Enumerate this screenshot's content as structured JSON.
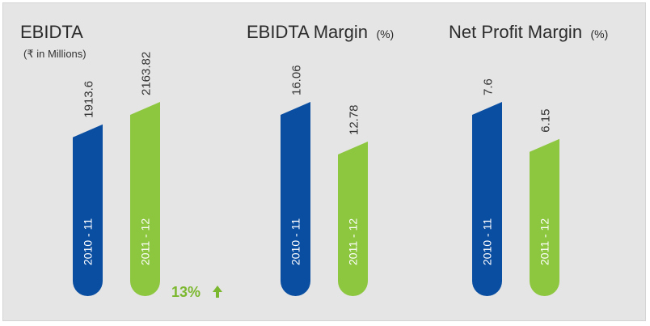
{
  "chart_data": [
    {
      "type": "bar",
      "title": "EBIDTA",
      "subtitle": "(₹ in Millions)",
      "categories": [
        "2010 - 11",
        "2011 - 12"
      ],
      "values": [
        1913.6,
        2163.82
      ],
      "value_labels": [
        "1913.6",
        "2163.82"
      ],
      "growth_label": "13%"
    },
    {
      "type": "bar",
      "title": "EBIDTA Margin",
      "title_unit": "(%)",
      "categories": [
        "2010 - 11",
        "2011 - 12"
      ],
      "values": [
        16.06,
        12.78
      ],
      "value_labels": [
        "16.06",
        "12.78"
      ]
    },
    {
      "type": "bar",
      "title": "Net Profit Margin",
      "title_unit": "(%)",
      "categories": [
        "2010 - 11",
        "2011 - 12"
      ],
      "values": [
        7.6,
        6.15
      ],
      "value_labels": [
        "7.6",
        "6.15"
      ]
    }
  ],
  "colors": {
    "first_bar": "#0a4ea2",
    "second_bar": "#8dc63f",
    "growth": "#7cb82f"
  },
  "growth_icon": "up-arrow-icon"
}
